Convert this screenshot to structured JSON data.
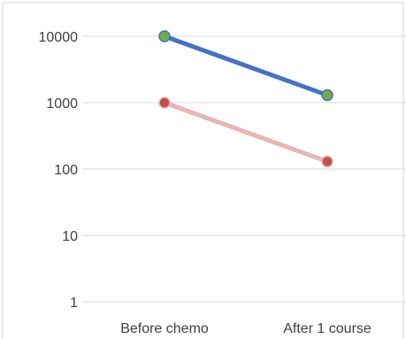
{
  "chart_data": {
    "type": "line",
    "y_scale": "log",
    "ylim": [
      1,
      10000
    ],
    "y_ticks": [
      {
        "value": 10000,
        "label": "10000"
      },
      {
        "value": 1000,
        "label": "1000"
      },
      {
        "value": 100,
        "label": "100"
      },
      {
        "value": 10,
        "label": "10"
      },
      {
        "value": 1,
        "label": "1"
      }
    ],
    "categories": [
      "Before chemo",
      "After 1 course"
    ],
    "grid": true,
    "legend": "none",
    "series": [
      {
        "values": [
          10000,
          1300
        ],
        "line_color": "#4472c4",
        "marker_fill": "#70ad47",
        "marker_stroke": "#4472c4"
      },
      {
        "values": [
          1000,
          130
        ],
        "line_color": "#e8b4b4",
        "marker_fill": "#c0504d",
        "marker_stroke": "#e8b4b4"
      }
    ],
    "colors": {
      "grid": "#d9d9d9",
      "border": "#d9d9d9",
      "text": "#404040"
    }
  }
}
